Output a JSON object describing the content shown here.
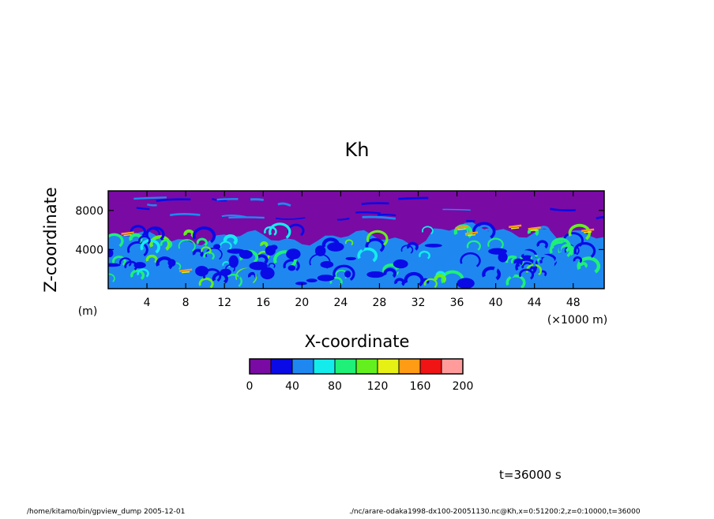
{
  "chart_data": {
    "type": "heatmap",
    "title": "Kh",
    "xlabel": "X-coordinate",
    "ylabel": "Z-coordinate",
    "x_unit_label": "(×1000 m)",
    "y_unit_label": "(m)",
    "xlim": [
      0,
      51.2
    ],
    "ylim": [
      0,
      10000
    ],
    "x_ticks": [
      4,
      8,
      12,
      16,
      20,
      24,
      28,
      32,
      36,
      40,
      44,
      48
    ],
    "y_ticks": [
      4000,
      8000
    ],
    "grid": false,
    "colorbar": {
      "levels": [
        0,
        20,
        40,
        60,
        80,
        100,
        120,
        140,
        160,
        180,
        200
      ],
      "tick_labels": [
        0,
        40,
        80,
        120,
        160,
        200
      ],
      "colors": [
        "#7a0aa4",
        "#0a0ae6",
        "#1e88f0",
        "#14ecec",
        "#1ef078",
        "#64f01e",
        "#e6f014",
        "#ff9b14",
        "#f01414",
        "#ff9b9b"
      ]
    },
    "description_of_field": "Purple (0-20) dominates above z~5000 m; turbulent mixed layer of blue, green and yellow values below ~6000 m, with peak values near x=36-44 km at z~6000 m."
  },
  "annotations": {
    "time_label": "t=36000 s",
    "footer_left": "/home/kitamo/bin/gpview_dump  2005-12-01",
    "footer_right": "./nc/arare-odaka1998-dx100-20051130.nc@Kh,x=0:51200:2,z=0:10000,t=36000"
  }
}
